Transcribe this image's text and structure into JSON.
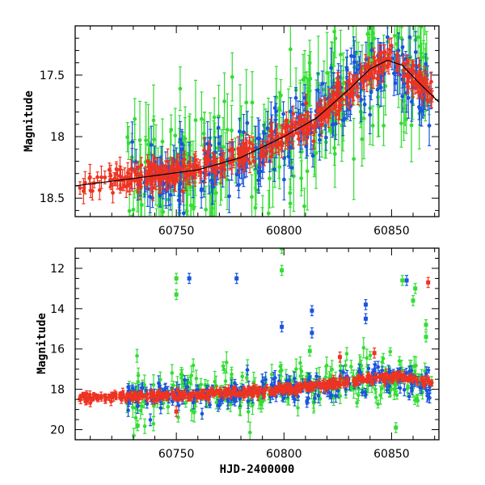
{
  "chart_data": [
    {
      "type": "scatter",
      "panel": "top",
      "title": "",
      "xlabel": "",
      "ylabel": "Magnitude",
      "xlim": [
        60703,
        60872
      ],
      "ylim": [
        18.65,
        17.1
      ],
      "y_inverted": true,
      "x_ticks": [
        60750,
        60800,
        60850
      ],
      "x_tick_labels": [
        "60750",
        "60800",
        "60850"
      ],
      "y_ticks": [
        17.5,
        18,
        18.5
      ],
      "y_tick_labels": [
        "17.5",
        "18",
        "18.5"
      ],
      "grid": false,
      "legend": "none",
      "series_colors": {
        "green": "#33dd33",
        "blue": "#1a55dd",
        "red": "#ee3322",
        "model": "#000000"
      },
      "model_curve": {
        "x": [
          60703,
          60730,
          60760,
          60780,
          60800,
          60815,
          60830,
          60840,
          60848,
          60855,
          60862,
          60872
        ],
        "y": [
          18.4,
          18.34,
          18.27,
          18.17,
          18.0,
          17.85,
          17.62,
          17.45,
          17.38,
          17.42,
          17.55,
          17.72
        ]
      },
      "series": [
        {
          "color": "red",
          "x_range": [
            60705,
            60869
          ],
          "scatter": 0.05,
          "err": 0.07,
          "dense_from": 60727
        },
        {
          "color": "blue",
          "x_range": [
            60727,
            60869
          ],
          "scatter": 0.14,
          "err": 0.12
        },
        {
          "color": "green",
          "x_range": [
            60727,
            60869
          ],
          "scatter": 0.28,
          "err": 0.22
        }
      ]
    },
    {
      "type": "scatter",
      "panel": "bottom",
      "title": "",
      "xlabel": "HJD-2400000",
      "ylabel": "Magnitude",
      "xlim": [
        60703,
        60872
      ],
      "ylim": [
        20.5,
        11.0
      ],
      "y_inverted": true,
      "x_ticks": [
        60750,
        60800,
        60850
      ],
      "x_tick_labels": [
        "60750",
        "60800",
        "60850"
      ],
      "y_ticks": [
        12,
        14,
        16,
        18,
        20
      ],
      "y_tick_labels": [
        "12",
        "14",
        "16",
        "18",
        "20"
      ],
      "grid": false,
      "legend": "none",
      "series": [
        {
          "color": "red",
          "x_range": [
            60705,
            60869
          ],
          "scatter": 0.1,
          "err": 0.15
        },
        {
          "color": "blue",
          "x_range": [
            60727,
            60869
          ],
          "scatter": 0.35,
          "err": 0.25
        },
        {
          "color": "green",
          "x_range": [
            60727,
            60869
          ],
          "scatter": 0.6,
          "err": 0.35
        }
      ],
      "outliers": [
        {
          "x": 60750,
          "y": 12.5,
          "color": "green"
        },
        {
          "x": 60750,
          "y": 13.3,
          "color": "green"
        },
        {
          "x": 60756,
          "y": 12.5,
          "color": "blue"
        },
        {
          "x": 60778,
          "y": 12.5,
          "color": "blue"
        },
        {
          "x": 60799,
          "y": 11.0,
          "color": "green"
        },
        {
          "x": 60799,
          "y": 12.1,
          "color": "green"
        },
        {
          "x": 60799,
          "y": 14.9,
          "color": "blue"
        },
        {
          "x": 60813,
          "y": 14.1,
          "color": "blue"
        },
        {
          "x": 60813,
          "y": 15.2,
          "color": "blue"
        },
        {
          "x": 60812,
          "y": 16.1,
          "color": "green"
        },
        {
          "x": 60838,
          "y": 13.8,
          "color": "blue"
        },
        {
          "x": 60838,
          "y": 14.5,
          "color": "blue"
        },
        {
          "x": 60855,
          "y": 12.6,
          "color": "green"
        },
        {
          "x": 60857,
          "y": 12.6,
          "color": "blue"
        },
        {
          "x": 60861,
          "y": 13.0,
          "color": "green"
        },
        {
          "x": 60860,
          "y": 13.6,
          "color": "green"
        },
        {
          "x": 60867,
          "y": 12.7,
          "color": "red"
        },
        {
          "x": 60866,
          "y": 14.8,
          "color": "green"
        },
        {
          "x": 60866,
          "y": 15.4,
          "color": "green"
        },
        {
          "x": 60852,
          "y": 19.9,
          "color": "green"
        },
        {
          "x": 60732,
          "y": 19.8,
          "color": "green"
        },
        {
          "x": 60750,
          "y": 19.1,
          "color": "red"
        },
        {
          "x": 60826,
          "y": 16.4,
          "color": "red"
        },
        {
          "x": 60842,
          "y": 16.2,
          "color": "red"
        }
      ]
    }
  ]
}
